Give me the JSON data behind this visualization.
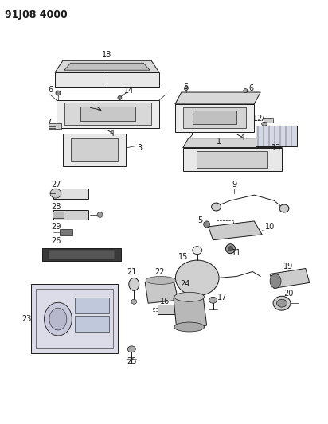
{
  "title": "91J08 4000",
  "bg_color": "#ffffff",
  "line_color": "#1a1a1a",
  "title_fontsize": 9,
  "label_fontsize": 7
}
